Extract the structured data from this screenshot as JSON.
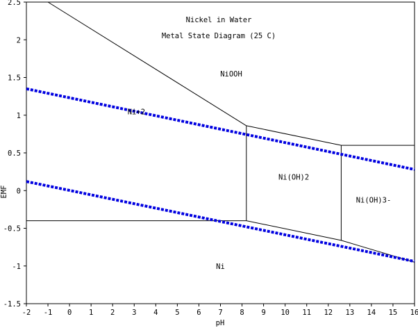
{
  "chart_data": {
    "type": "line",
    "title": "Nickel in Water",
    "subtitle": "Metal State Diagram (25 C)",
    "xlabel": "pH",
    "ylabel": "EMF",
    "xlim": [
      -2,
      16
    ],
    "ylim": [
      -1.5,
      2.5
    ],
    "x_ticks": [
      -2,
      -1,
      0,
      1,
      2,
      3,
      4,
      5,
      6,
      7,
      8,
      9,
      10,
      11,
      12,
      13,
      14,
      15,
      16
    ],
    "x_tick_labels": [
      "-2",
      "-1",
      "0",
      "1",
      "2",
      "3",
      "4",
      "5",
      "6",
      "7",
      "8",
      "9",
      "10",
      "11",
      "12",
      "13",
      "14",
      "15",
      "16"
    ],
    "y_ticks": [
      -1.5,
      -1,
      -0.5,
      0,
      0.5,
      1,
      1.5,
      2,
      2.5
    ],
    "y_tick_labels": [
      "-1.5",
      "-1",
      "-0.5",
      "0",
      "0.5",
      "1",
      "1.5",
      "2",
      "2.5"
    ],
    "grid": false,
    "colors": {
      "boundary": "#000000",
      "water_lines": "#0000e0"
    },
    "boundaries": [
      {
        "points": [
          [
            -1,
            2.5
          ],
          [
            8.2,
            0.86
          ]
        ]
      },
      {
        "points": [
          [
            8.2,
            0.86
          ],
          [
            12.6,
            0.6
          ],
          [
            16,
            0.6
          ]
        ]
      },
      {
        "points": [
          [
            8.2,
            0.86
          ],
          [
            8.2,
            -0.4
          ]
        ]
      },
      {
        "points": [
          [
            12.6,
            0.6
          ],
          [
            12.6,
            -0.66
          ]
        ]
      },
      {
        "points": [
          [
            -2,
            -0.4
          ],
          [
            8.2,
            -0.4
          ],
          [
            12.6,
            -0.66
          ],
          [
            16,
            -0.95
          ]
        ]
      }
    ],
    "water_lines": [
      {
        "points": [
          [
            -2,
            1.35
          ],
          [
            16,
            0.28
          ]
        ]
      },
      {
        "points": [
          [
            -2,
            0.12
          ],
          [
            16,
            -0.94
          ]
        ]
      }
    ],
    "region_labels": [
      {
        "text": "NiOOH",
        "x": 7.5,
        "y": 1.55
      },
      {
        "text": "Ni+2",
        "x": 3.1,
        "y": 1.05
      },
      {
        "text": "Ni(OH)2",
        "x": 10.4,
        "y": 0.18
      },
      {
        "text": "Ni(OH)3-",
        "x": 14.1,
        "y": -0.12
      },
      {
        "text": "Ni",
        "x": 7,
        "y": -1.0
      }
    ]
  }
}
